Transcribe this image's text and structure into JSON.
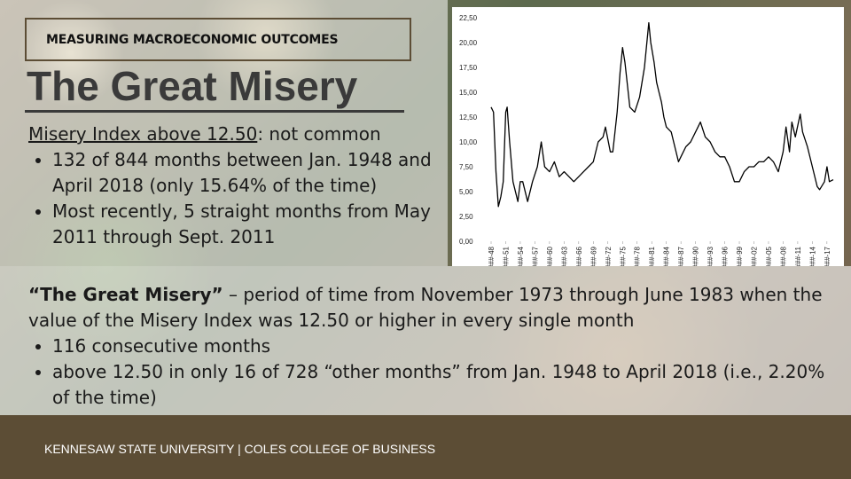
{
  "header": {
    "kicker": "MEASURING MACROECONOMIC OUTCOMES",
    "title": "The Great Misery"
  },
  "top_text": {
    "lead_underlined": "Misery Index above 12.50",
    "lead_rest": ": not common",
    "items": [
      "132 of 844 months between Jan. 1948 and April 2018 (only 15.64% of the time)",
      "Most recently, 5 straight months from May 2011 through Sept. 2011"
    ]
  },
  "body": {
    "lead_bold": "“The Great Misery”",
    "lead_rest": " – period of time from November 1973 through June 1983 when the value of the Misery Index was 12.50 or higher in every single month",
    "items": [
      "116 consecutive months",
      "above 12.50 in only 16 of 728 “other months” from Jan. 1948 to April 2018 (i.e., 2.20% of the time)"
    ]
  },
  "footer": "KENNESAW STATE UNIVERSITY | COLES COLLEGE OF BUSINESS",
  "chart_data": {
    "type": "line",
    "x": [
      1948.0,
      1948.5,
      1949.0,
      1949.5,
      1950.0,
      1950.5,
      1951.0,
      1951.3,
      1951.8,
      1952.5,
      1953.5,
      1954.0,
      1954.5,
      1955.5,
      1956.5,
      1957.5,
      1958.3,
      1959.0,
      1960.0,
      1961.0,
      1962.0,
      1963.0,
      1964.0,
      1965.0,
      1966.0,
      1967.0,
      1968.0,
      1969.0,
      1970.0,
      1971.0,
      1971.5,
      1972.5,
      1973.0,
      1973.9,
      1974.5,
      1975.0,
      1975.5,
      1976.5,
      1977.5,
      1978.5,
      1979.5,
      1980.4,
      1980.8,
      1981.5,
      1982.0,
      1982.5,
      1983.0,
      1983.5,
      1984.0,
      1985.0,
      1986.5,
      1987.0,
      1988.0,
      1989.0,
      1990.5,
      1991.0,
      1992.0,
      1993.0,
      1994.0,
      1995.0,
      1996.0,
      1997.0,
      1998.0,
      1999.0,
      2000.0,
      2001.0,
      2002.0,
      2003.0,
      2004.0,
      2005.0,
      2006.0,
      2007.0,
      2008.0,
      2008.6,
      2009.3,
      2009.8,
      2010.5,
      2011.5,
      2012.0,
      2013.0,
      2014.0,
      2015.0,
      2015.5,
      2016.5,
      2017.0,
      2017.5,
      2018.3
    ],
    "series": [
      {
        "color": "#000000",
        "values": [
          13.5,
          13,
          7,
          3.5,
          4.5,
          6,
          13,
          13.5,
          10,
          6,
          4,
          6,
          6,
          4,
          6,
          7.5,
          10,
          7.5,
          7,
          8,
          6.5,
          7,
          6.5,
          6,
          6.5,
          7,
          7.5,
          8,
          10,
          10.5,
          11.5,
          9,
          9,
          13,
          17,
          19.5,
          18,
          13.5,
          13,
          14.5,
          17.5,
          22,
          20,
          18,
          16,
          15,
          14,
          12.5,
          11.5,
          11,
          8,
          8.5,
          9.5,
          10,
          11.5,
          12,
          10.5,
          10,
          9,
          8.5,
          8.5,
          7.5,
          6,
          6,
          7,
          7.5,
          7.5,
          8,
          8,
          8.5,
          8,
          7,
          9,
          11.5,
          9,
          12,
          10.5,
          12.8,
          11,
          9.5,
          7.5,
          5.5,
          5.2,
          6,
          7.5,
          6,
          6.2
        ]
      }
    ],
    "xlim": [
      1948,
      2018.3
    ],
    "xticks": [
      {
        "value": 1948,
        "label": "###-48"
      },
      {
        "value": 1951,
        "label": "###-51"
      },
      {
        "value": 1954,
        "label": "###-54"
      },
      {
        "value": 1957,
        "label": "###-57"
      },
      {
        "value": 1960,
        "label": "###-60"
      },
      {
        "value": 1963,
        "label": "###-63"
      },
      {
        "value": 1966,
        "label": "###-66"
      },
      {
        "value": 1969,
        "label": "###-69"
      },
      {
        "value": 1972,
        "label": "###-72"
      },
      {
        "value": 1975,
        "label": "###-75"
      },
      {
        "value": 1978,
        "label": "###-78"
      },
      {
        "value": 1981,
        "label": "###-81"
      },
      {
        "value": 1984,
        "label": "###-84"
      },
      {
        "value": 1987,
        "label": "###-87"
      },
      {
        "value": 1990,
        "label": "###-90"
      },
      {
        "value": 1993,
        "label": "###-93"
      },
      {
        "value": 1996,
        "label": "###-96"
      },
      {
        "value": 1999,
        "label": "###-99"
      },
      {
        "value": 2002,
        "label": "###-02"
      },
      {
        "value": 2005,
        "label": "###-05"
      },
      {
        "value": 2008,
        "label": "###-08"
      },
      {
        "value": 2011,
        "label": "###-11"
      },
      {
        "value": 2014,
        "label": "###-14"
      },
      {
        "value": 2017,
        "label": "###-17"
      }
    ],
    "ylim": [
      0,
      22.5
    ],
    "yticks": [
      {
        "value": 0,
        "label": "0,00"
      },
      {
        "value": 2.5,
        "label": "2,50"
      },
      {
        "value": 5,
        "label": "5,00"
      },
      {
        "value": 7.5,
        "label": "7,50"
      },
      {
        "value": 10,
        "label": "10,00"
      },
      {
        "value": 12.5,
        "label": "12,50"
      },
      {
        "value": 15,
        "label": "15,00"
      },
      {
        "value": 17.5,
        "label": "17,50"
      },
      {
        "value": 20,
        "label": "20,00"
      },
      {
        "value": 22.5,
        "label": "22,50"
      }
    ]
  }
}
